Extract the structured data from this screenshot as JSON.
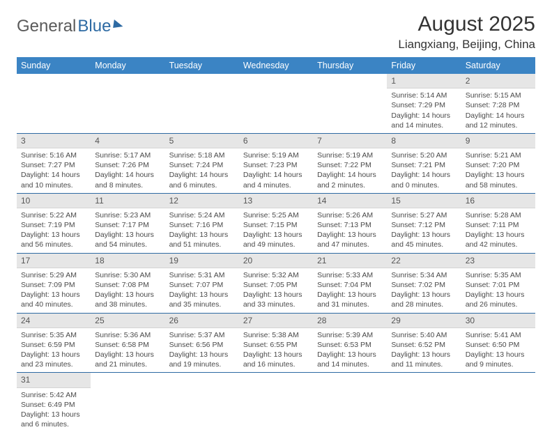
{
  "logo": {
    "text1": "General",
    "text2": "Blue"
  },
  "title": "August 2025",
  "location": "Liangxiang, Beijing, China",
  "colors": {
    "header_bg": "#3b84c4",
    "header_text": "#ffffff",
    "daynum_bg": "#e6e6e6",
    "rule": "#2d6aa3",
    "body_text": "#4a4a4a"
  },
  "weekdays": [
    "Sunday",
    "Monday",
    "Tuesday",
    "Wednesday",
    "Thursday",
    "Friday",
    "Saturday"
  ],
  "weeks": [
    [
      null,
      null,
      null,
      null,
      null,
      {
        "n": "1",
        "sr": "Sunrise: 5:14 AM",
        "ss": "Sunset: 7:29 PM",
        "dl": "Daylight: 14 hours and 14 minutes."
      },
      {
        "n": "2",
        "sr": "Sunrise: 5:15 AM",
        "ss": "Sunset: 7:28 PM",
        "dl": "Daylight: 14 hours and 12 minutes."
      }
    ],
    [
      {
        "n": "3",
        "sr": "Sunrise: 5:16 AM",
        "ss": "Sunset: 7:27 PM",
        "dl": "Daylight: 14 hours and 10 minutes."
      },
      {
        "n": "4",
        "sr": "Sunrise: 5:17 AM",
        "ss": "Sunset: 7:26 PM",
        "dl": "Daylight: 14 hours and 8 minutes."
      },
      {
        "n": "5",
        "sr": "Sunrise: 5:18 AM",
        "ss": "Sunset: 7:24 PM",
        "dl": "Daylight: 14 hours and 6 minutes."
      },
      {
        "n": "6",
        "sr": "Sunrise: 5:19 AM",
        "ss": "Sunset: 7:23 PM",
        "dl": "Daylight: 14 hours and 4 minutes."
      },
      {
        "n": "7",
        "sr": "Sunrise: 5:19 AM",
        "ss": "Sunset: 7:22 PM",
        "dl": "Daylight: 14 hours and 2 minutes."
      },
      {
        "n": "8",
        "sr": "Sunrise: 5:20 AM",
        "ss": "Sunset: 7:21 PM",
        "dl": "Daylight: 14 hours and 0 minutes."
      },
      {
        "n": "9",
        "sr": "Sunrise: 5:21 AM",
        "ss": "Sunset: 7:20 PM",
        "dl": "Daylight: 13 hours and 58 minutes."
      }
    ],
    [
      {
        "n": "10",
        "sr": "Sunrise: 5:22 AM",
        "ss": "Sunset: 7:19 PM",
        "dl": "Daylight: 13 hours and 56 minutes."
      },
      {
        "n": "11",
        "sr": "Sunrise: 5:23 AM",
        "ss": "Sunset: 7:17 PM",
        "dl": "Daylight: 13 hours and 54 minutes."
      },
      {
        "n": "12",
        "sr": "Sunrise: 5:24 AM",
        "ss": "Sunset: 7:16 PM",
        "dl": "Daylight: 13 hours and 51 minutes."
      },
      {
        "n": "13",
        "sr": "Sunrise: 5:25 AM",
        "ss": "Sunset: 7:15 PM",
        "dl": "Daylight: 13 hours and 49 minutes."
      },
      {
        "n": "14",
        "sr": "Sunrise: 5:26 AM",
        "ss": "Sunset: 7:13 PM",
        "dl": "Daylight: 13 hours and 47 minutes."
      },
      {
        "n": "15",
        "sr": "Sunrise: 5:27 AM",
        "ss": "Sunset: 7:12 PM",
        "dl": "Daylight: 13 hours and 45 minutes."
      },
      {
        "n": "16",
        "sr": "Sunrise: 5:28 AM",
        "ss": "Sunset: 7:11 PM",
        "dl": "Daylight: 13 hours and 42 minutes."
      }
    ],
    [
      {
        "n": "17",
        "sr": "Sunrise: 5:29 AM",
        "ss": "Sunset: 7:09 PM",
        "dl": "Daylight: 13 hours and 40 minutes."
      },
      {
        "n": "18",
        "sr": "Sunrise: 5:30 AM",
        "ss": "Sunset: 7:08 PM",
        "dl": "Daylight: 13 hours and 38 minutes."
      },
      {
        "n": "19",
        "sr": "Sunrise: 5:31 AM",
        "ss": "Sunset: 7:07 PM",
        "dl": "Daylight: 13 hours and 35 minutes."
      },
      {
        "n": "20",
        "sr": "Sunrise: 5:32 AM",
        "ss": "Sunset: 7:05 PM",
        "dl": "Daylight: 13 hours and 33 minutes."
      },
      {
        "n": "21",
        "sr": "Sunrise: 5:33 AM",
        "ss": "Sunset: 7:04 PM",
        "dl": "Daylight: 13 hours and 31 minutes."
      },
      {
        "n": "22",
        "sr": "Sunrise: 5:34 AM",
        "ss": "Sunset: 7:02 PM",
        "dl": "Daylight: 13 hours and 28 minutes."
      },
      {
        "n": "23",
        "sr": "Sunrise: 5:35 AM",
        "ss": "Sunset: 7:01 PM",
        "dl": "Daylight: 13 hours and 26 minutes."
      }
    ],
    [
      {
        "n": "24",
        "sr": "Sunrise: 5:35 AM",
        "ss": "Sunset: 6:59 PM",
        "dl": "Daylight: 13 hours and 23 minutes."
      },
      {
        "n": "25",
        "sr": "Sunrise: 5:36 AM",
        "ss": "Sunset: 6:58 PM",
        "dl": "Daylight: 13 hours and 21 minutes."
      },
      {
        "n": "26",
        "sr": "Sunrise: 5:37 AM",
        "ss": "Sunset: 6:56 PM",
        "dl": "Daylight: 13 hours and 19 minutes."
      },
      {
        "n": "27",
        "sr": "Sunrise: 5:38 AM",
        "ss": "Sunset: 6:55 PM",
        "dl": "Daylight: 13 hours and 16 minutes."
      },
      {
        "n": "28",
        "sr": "Sunrise: 5:39 AM",
        "ss": "Sunset: 6:53 PM",
        "dl": "Daylight: 13 hours and 14 minutes."
      },
      {
        "n": "29",
        "sr": "Sunrise: 5:40 AM",
        "ss": "Sunset: 6:52 PM",
        "dl": "Daylight: 13 hours and 11 minutes."
      },
      {
        "n": "30",
        "sr": "Sunrise: 5:41 AM",
        "ss": "Sunset: 6:50 PM",
        "dl": "Daylight: 13 hours and 9 minutes."
      }
    ],
    [
      {
        "n": "31",
        "sr": "Sunrise: 5:42 AM",
        "ss": "Sunset: 6:49 PM",
        "dl": "Daylight: 13 hours and 6 minutes."
      },
      null,
      null,
      null,
      null,
      null,
      null
    ]
  ]
}
